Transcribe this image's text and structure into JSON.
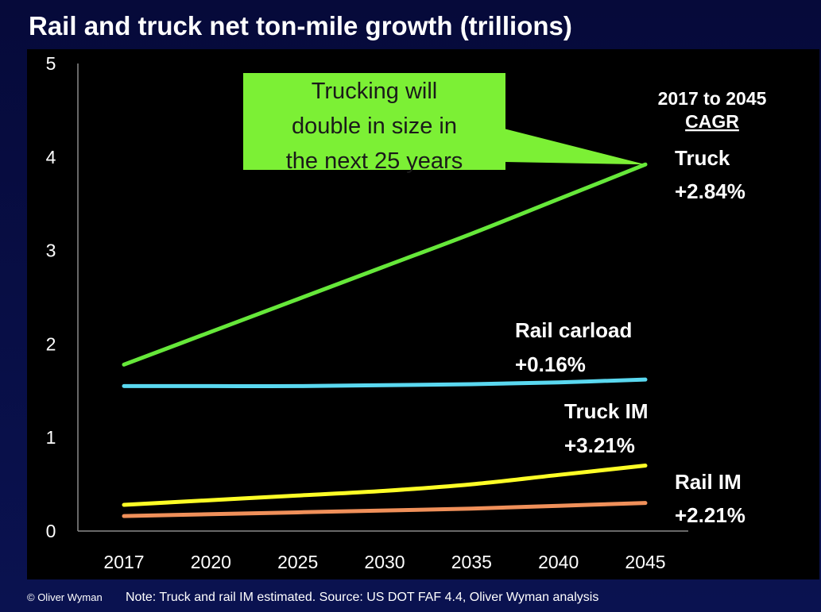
{
  "title": "Rail and truck net ton-mile growth (trillions)",
  "footer": {
    "copyright": "© Oliver Wyman",
    "note": "Note: Truck and rail IM estimated. Source: US DOT FAF 4.4, Oliver Wyman analysis"
  },
  "cagr_header": [
    "2017 to 2045",
    "CAGR"
  ],
  "callout": {
    "lines": [
      "Trucking will",
      "double in size in",
      "the next 25 years"
    ],
    "color": "#7cf035"
  },
  "chart_data": {
    "type": "line",
    "title": "Rail and truck net ton-mile growth (trillions)",
    "xlabel": "",
    "ylabel": "",
    "categories": [
      "2017",
      "2020",
      "2025",
      "2030",
      "2035",
      "2040",
      "2045"
    ],
    "y_ticks": [
      "0",
      "1",
      "2",
      "3",
      "4",
      "5"
    ],
    "ylim": [
      0,
      5
    ],
    "grid": false,
    "series": [
      {
        "name": "Truck",
        "cagr": "+2.84%",
        "color": "#66e83a",
        "values": [
          1.78,
          2.13,
          2.48,
          2.83,
          3.18,
          3.55,
          3.92
        ]
      },
      {
        "name": "Rail carload",
        "cagr": "+0.16%",
        "color": "#5ad8f0",
        "values": [
          1.55,
          1.55,
          1.55,
          1.56,
          1.57,
          1.59,
          1.62
        ]
      },
      {
        "name": "Truck IM",
        "cagr": "+3.21%",
        "color": "#ffff26",
        "values": [
          0.28,
          0.33,
          0.38,
          0.43,
          0.5,
          0.6,
          0.7
        ]
      },
      {
        "name": "Rail IM",
        "cagr": "+2.21%",
        "color": "#f0905a",
        "values": [
          0.16,
          0.18,
          0.2,
          0.22,
          0.24,
          0.27,
          0.3
        ]
      }
    ]
  }
}
